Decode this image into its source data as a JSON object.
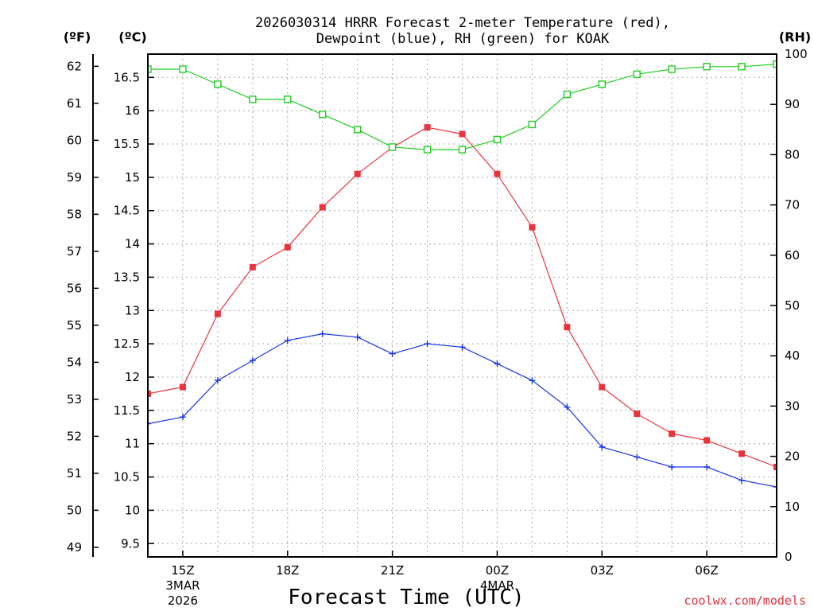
{
  "chart_data": {
    "type": "line",
    "title_line1": "2026030314 HRRR Forecast 2-meter Temperature (red),",
    "title_line2": "Dewpoint (blue), RH (green) for KOAK",
    "xlabel": "Forecast Time (UTC)",
    "credit": "coolwx.com/models",
    "unit_labels": {
      "fahrenheit": "(ºF)",
      "celsius": "(ºC)",
      "rh": "(RH)"
    },
    "x_hours": [
      14,
      15,
      16,
      17,
      18,
      19,
      20,
      21,
      22,
      23,
      24,
      25,
      26,
      27,
      28,
      29,
      30,
      31,
      32
    ],
    "xlim": [
      14,
      32
    ],
    "x_ticks": [
      {
        "hour": 15,
        "label": "15Z",
        "sub1": "3MAR",
        "sub2": "2026"
      },
      {
        "hour": 18,
        "label": "18Z",
        "sub1": "",
        "sub2": ""
      },
      {
        "hour": 21,
        "label": "21Z",
        "sub1": "",
        "sub2": ""
      },
      {
        "hour": 24,
        "label": "00Z",
        "sub1": "4MAR",
        "sub2": ""
      },
      {
        "hour": 27,
        "label": "03Z",
        "sub1": "",
        "sub2": ""
      },
      {
        "hour": 30,
        "label": "06Z",
        "sub1": "",
        "sub2": ""
      }
    ],
    "celsius_axis": {
      "range": [
        9.3,
        16.85
      ],
      "ticks": [
        "9.5",
        "10",
        "10.5",
        "11",
        "11.5",
        "12",
        "12.5",
        "13",
        "13.5",
        "14",
        "14.5",
        "15",
        "15.5",
        "16",
        "16.5"
      ]
    },
    "fahrenheit_axis": {
      "ticks": [
        "49",
        "50",
        "51",
        "52",
        "53",
        "54",
        "55",
        "56",
        "57",
        "58",
        "59",
        "60",
        "61",
        "62"
      ]
    },
    "rh_axis": {
      "range": [
        0,
        100
      ],
      "ticks": [
        "0",
        "10",
        "20",
        "30",
        "40",
        "50",
        "60",
        "70",
        "80",
        "90",
        "100"
      ]
    },
    "grid": true,
    "series": [
      {
        "name": "Temperature",
        "color": "#e8343c",
        "axis": "celsius",
        "marker": "filled-square",
        "values": [
          11.75,
          11.85,
          12.95,
          13.65,
          13.95,
          14.55,
          15.05,
          15.45,
          15.75,
          15.65,
          15.05,
          14.25,
          12.75,
          11.85,
          11.45,
          11.15,
          11.05,
          10.85,
          10.65
        ]
      },
      {
        "name": "Dewpoint",
        "color": "#1a35e8",
        "axis": "celsius",
        "marker": "plus",
        "values": [
          11.3,
          11.4,
          11.95,
          12.25,
          12.55,
          12.65,
          12.6,
          12.35,
          12.5,
          12.45,
          12.2,
          11.95,
          11.55,
          10.95,
          10.8,
          10.65,
          10.65,
          10.45,
          10.35
        ]
      },
      {
        "name": "RH",
        "color": "#22cc22",
        "axis": "rh",
        "marker": "hollow-square",
        "values": [
          97,
          97,
          94,
          91,
          91,
          88,
          85,
          81.5,
          81,
          81,
          83,
          86,
          92,
          94,
          96,
          97,
          97.5,
          97.5,
          98
        ]
      }
    ]
  }
}
